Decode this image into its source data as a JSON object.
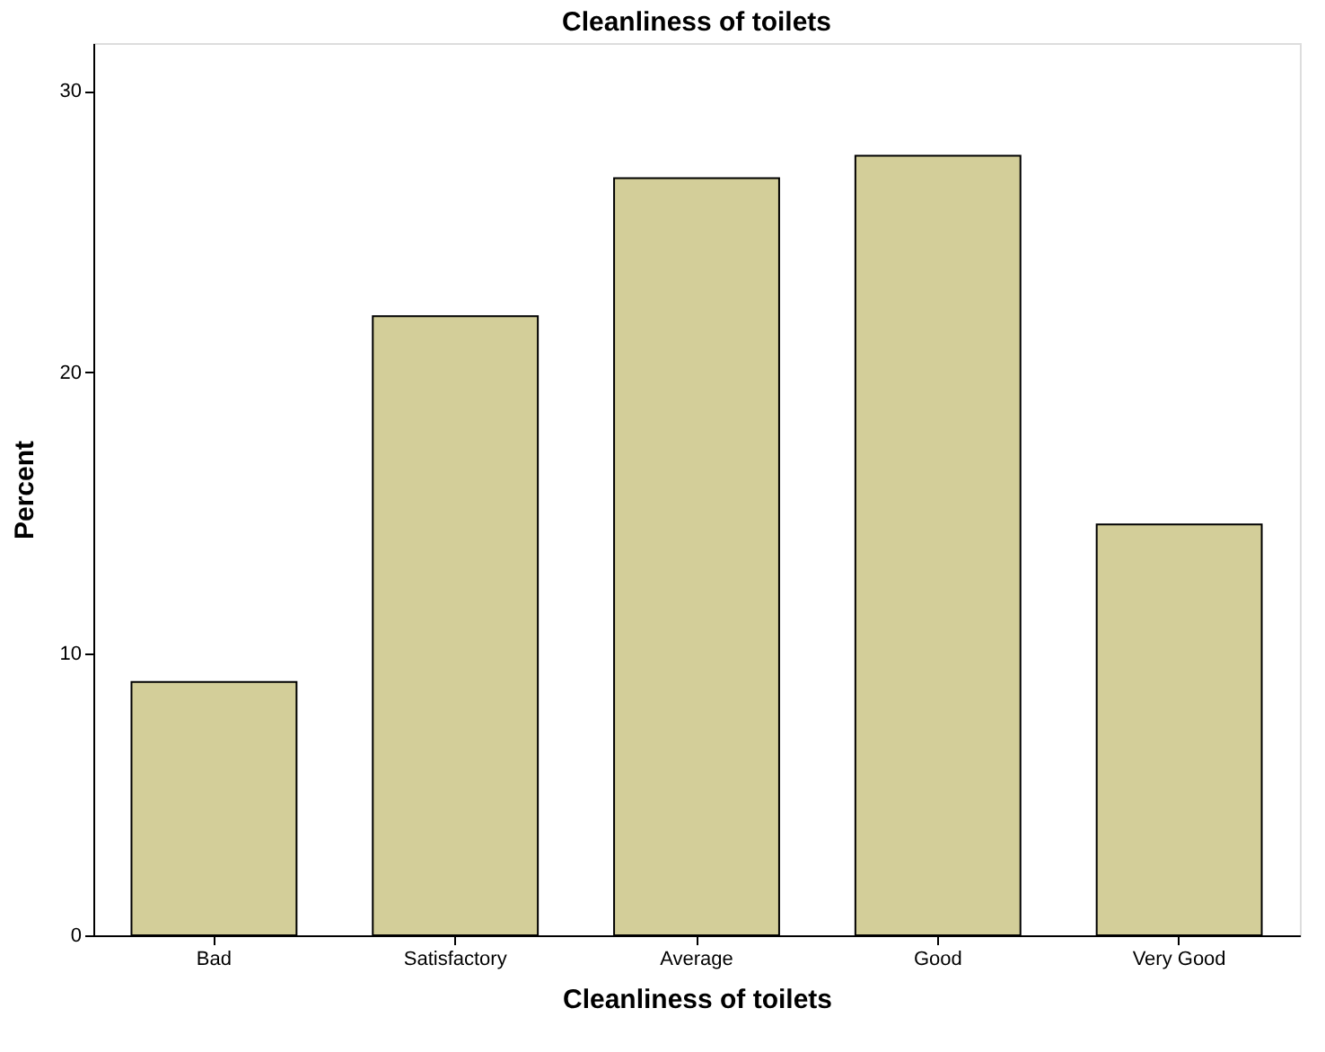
{
  "chart_data": {
    "type": "bar",
    "title": "Cleanliness of toilets",
    "xlabel": "Cleanliness of toilets",
    "ylabel": "Percent",
    "categories": [
      "Bad",
      "Satisfactory",
      "Average",
      "Good",
      "Very Good"
    ],
    "values": [
      9.0,
      22.0,
      26.9,
      27.7,
      14.6
    ],
    "color": "#d3ce99",
    "ylim": [
      0,
      31.7
    ],
    "yticks": [
      0,
      10,
      20,
      30
    ],
    "grid": false
  }
}
